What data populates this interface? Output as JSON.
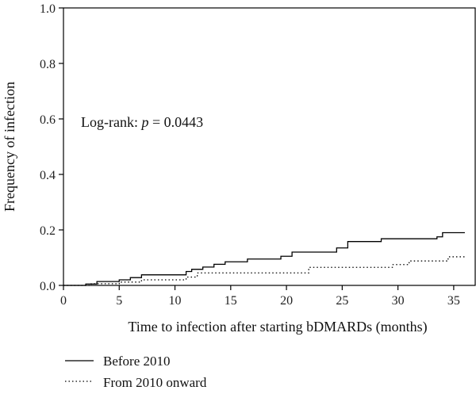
{
  "chart_data": {
    "type": "line",
    "xlabel": "Time to infection after starting bDMARDs (months)",
    "ylabel": "Frequency of infection",
    "xlim": [
      0,
      37
    ],
    "ylim": [
      0,
      1.0
    ],
    "x_ticks": [
      0,
      5,
      10,
      15,
      20,
      25,
      30,
      35
    ],
    "y_ticks": [
      0.0,
      0.2,
      0.4,
      0.6,
      0.8,
      1.0
    ],
    "x_tick_labels": [
      "0",
      "5",
      "10",
      "15",
      "20",
      "25",
      "30",
      "35"
    ],
    "y_tick_labels": [
      "0.0",
      "0.2",
      "0.4",
      "0.6",
      "0.8",
      "1.0"
    ],
    "annotation": {
      "prefix": "Log-rank: ",
      "italic": "p",
      "suffix": " = 0.0443"
    },
    "grid": false,
    "legend_position": "bottom-left, below plot",
    "series": [
      {
        "name": "Before 2010",
        "style": "solid",
        "color": "#000000",
        "x": [
          0,
          2,
          3,
          5,
          6,
          7,
          11,
          11.5,
          12.5,
          13.5,
          14.5,
          16.5,
          19.5,
          20.5,
          24.5,
          25.5,
          28.5,
          33.5,
          34,
          36
        ],
        "y": [
          0,
          0.005,
          0.014,
          0.02,
          0.028,
          0.038,
          0.05,
          0.058,
          0.066,
          0.076,
          0.085,
          0.095,
          0.105,
          0.12,
          0.135,
          0.158,
          0.168,
          0.175,
          0.19,
          0.19
        ]
      },
      {
        "name": "From 2010 onward",
        "style": "dotted",
        "color": "#000000",
        "x": [
          0,
          2.5,
          5,
          7,
          11,
          12,
          22,
          27.5,
          29.5,
          31,
          34.5,
          36
        ],
        "y": [
          0,
          0.006,
          0.012,
          0.02,
          0.03,
          0.045,
          0.065,
          0.065,
          0.075,
          0.088,
          0.103,
          0.103
        ]
      }
    ]
  }
}
